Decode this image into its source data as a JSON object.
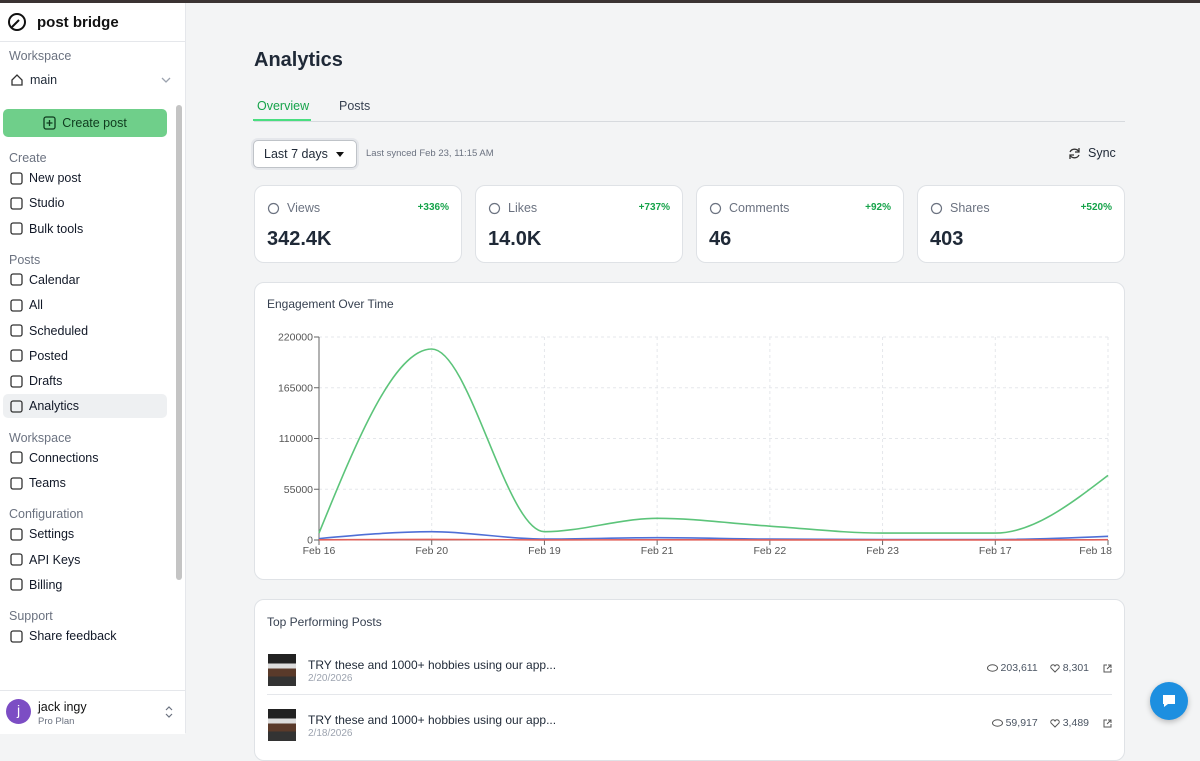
{
  "app": {
    "brand": "post bridge"
  },
  "sidebar": {
    "workspace_label": "Workspace",
    "workspace": "main",
    "create_button": "Create post",
    "sections": [
      {
        "title": "Create",
        "items": [
          "New post",
          "Studio",
          "Bulk tools"
        ]
      },
      {
        "title": "Posts",
        "items": [
          "Calendar",
          "All",
          "Scheduled",
          "Posted",
          "Drafts",
          "Analytics"
        ]
      },
      {
        "title": "Workspace",
        "items": [
          "Connections",
          "Teams"
        ]
      },
      {
        "title": "Configuration",
        "items": [
          "Settings",
          "API Keys",
          "Billing"
        ]
      },
      {
        "title": "Support",
        "items": [
          "Share feedback"
        ]
      }
    ],
    "active": "Analytics",
    "user": {
      "initial": "j",
      "name": "jack ingy",
      "plan": "Pro Plan"
    }
  },
  "page": {
    "title": "Analytics",
    "tabs": [
      "Overview",
      "Posts"
    ],
    "range": "Last 7 days",
    "synced": "Last synced Feb 23, 11:15 AM",
    "sync": "Sync"
  },
  "stats": [
    {
      "label": "Views",
      "change": "+336%",
      "value": "342.4K"
    },
    {
      "label": "Likes",
      "change": "+737%",
      "value": "14.0K"
    },
    {
      "label": "Comments",
      "change": "+92%",
      "value": "46"
    },
    {
      "label": "Shares",
      "change": "+520%",
      "value": "403"
    }
  ],
  "chart_data": {
    "type": "line",
    "title": "Engagement Over Time",
    "categories": [
      "Feb 16",
      "Feb 20",
      "Feb 19",
      "Feb 21",
      "Feb 22",
      "Feb 23",
      "Feb 17",
      "Feb 18"
    ],
    "ylim": [
      0,
      220000
    ],
    "yticks": [
      0,
      55000,
      110000,
      165000,
      220000
    ],
    "grid": true,
    "series": [
      {
        "color": "#5cc47a",
        "values": [
          7500,
          207000,
          9000,
          23500,
          15000,
          7500,
          7500,
          70000
        ]
      },
      {
        "color": "#4f6fd6",
        "values": [
          1500,
          9000,
          1000,
          2500,
          1000,
          500,
          500,
          4000
        ]
      },
      {
        "color": "#e0605a",
        "values": [
          200,
          600,
          100,
          200,
          100,
          50,
          50,
          300
        ]
      }
    ]
  },
  "top_posts": {
    "title": "Top Performing Posts",
    "posts": [
      {
        "text": "TRY these and 1000+ hobbies using our app...",
        "date": "2/20/2026",
        "views": "203,611",
        "likes": "8,301"
      },
      {
        "text": "TRY these and 1000+ hobbies using our app...",
        "date": "2/18/2026",
        "views": "59,917",
        "likes": "3,489"
      }
    ]
  }
}
